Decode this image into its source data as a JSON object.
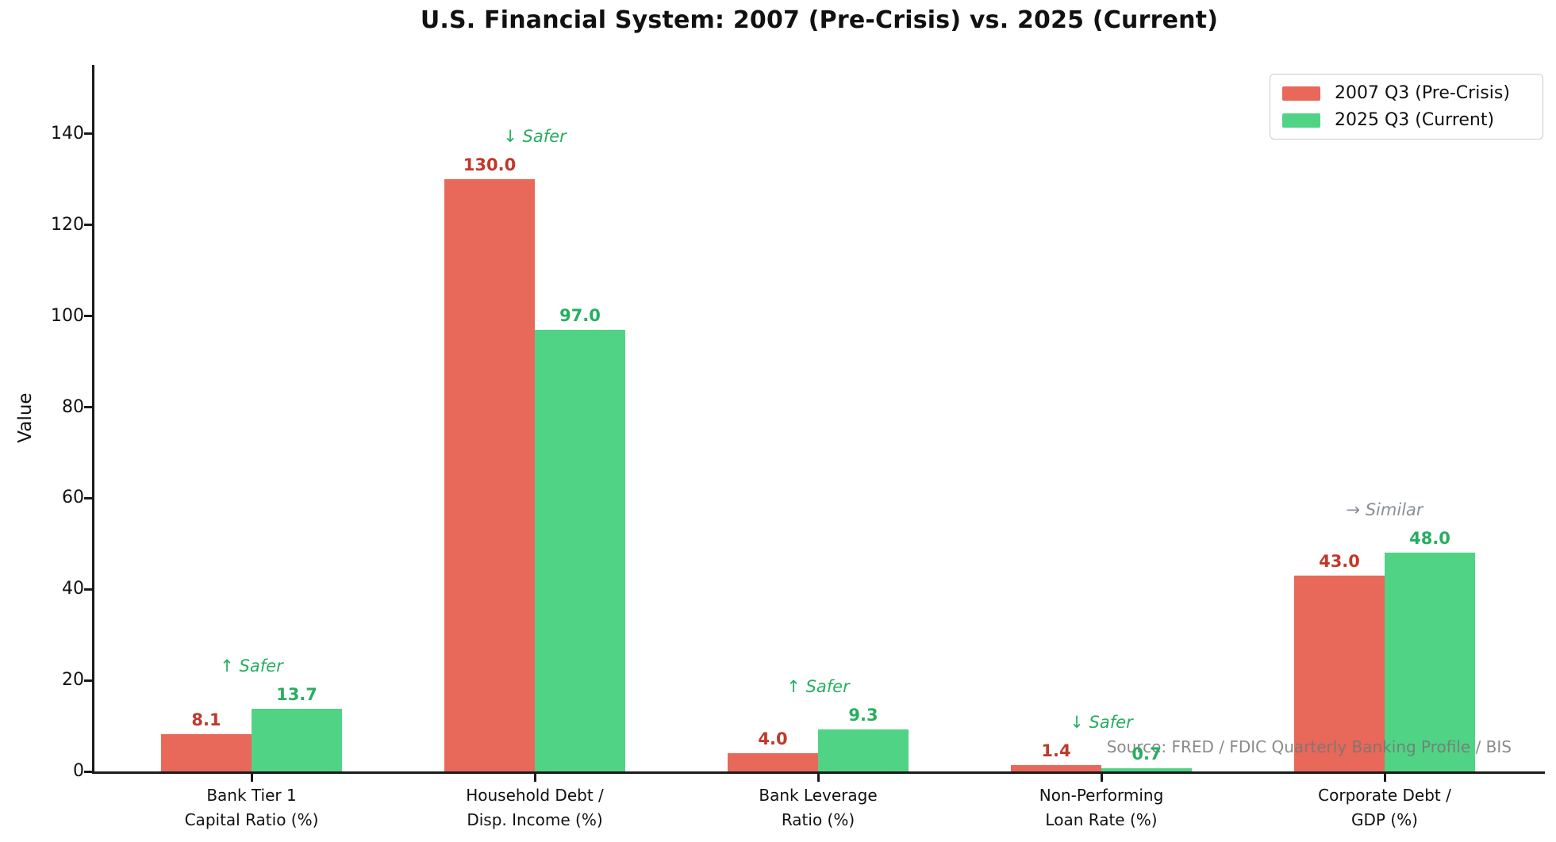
{
  "chart_data": {
    "type": "bar",
    "title": "U.S. Financial System: 2007 (Pre-Crisis) vs. 2025 (Current)",
    "xlabel": "",
    "ylabel": "Value",
    "ylim": [
      0,
      155
    ],
    "yticks": [
      0,
      20,
      40,
      60,
      80,
      100,
      120,
      140
    ],
    "grid": false,
    "legend_position": "upper right",
    "categories": [
      "Bank Tier 1\nCapital Ratio (%)",
      "Household Debt /\nDisp. Income (%)",
      "Bank Leverage\nRatio (%)",
      "Non-Performing\nLoan Rate (%)",
      "Corporate Debt /\nGDP (%)"
    ],
    "series": [
      {
        "name": "2007 Q3 (Pre-Crisis)",
        "color": "#e8685a",
        "value_label_color": "#c0392b",
        "values": [
          8.1,
          130.0,
          4.0,
          1.4,
          43.0
        ]
      },
      {
        "name": "2025 Q3 (Current)",
        "color": "#50d385",
        "value_label_color": "#27ae60",
        "values": [
          13.7,
          97.0,
          9.3,
          0.7,
          48.0
        ]
      }
    ],
    "annotations": [
      {
        "category_index": 0,
        "text": "↑ Safer",
        "color": "#27ae60"
      },
      {
        "category_index": 1,
        "text": "↓ Safer",
        "color": "#27ae60"
      },
      {
        "category_index": 2,
        "text": "↑ Safer",
        "color": "#27ae60"
      },
      {
        "category_index": 3,
        "text": "↓ Safer",
        "color": "#27ae60"
      },
      {
        "category_index": 4,
        "text": "→ Similar",
        "color": "#8a9097"
      }
    ],
    "source_note": "Source: FRED / FDIC Quarterly Banking Profile / BIS"
  }
}
